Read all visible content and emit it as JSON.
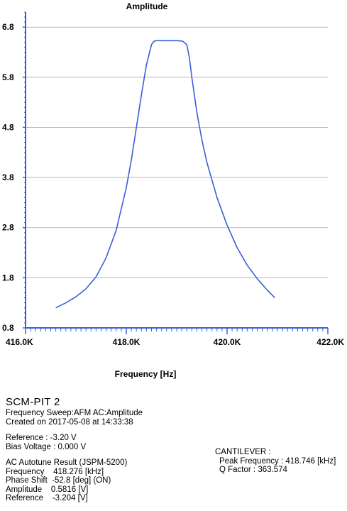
{
  "chart_data": {
    "type": "line",
    "title": "Amplitude",
    "xlabel": "Frequency [Hz]",
    "ylabel": "",
    "xlim": [
      416.0,
      422.0
    ],
    "ylim": [
      0.8,
      7.1
    ],
    "x_ticks": [
      "416.0K",
      "418.0K",
      "420.0K",
      "422.0K"
    ],
    "x_tick_values": [
      416.0,
      418.0,
      420.0,
      422.0
    ],
    "y_ticks": [
      "0.8",
      "1.8",
      "2.8",
      "3.8",
      "4.8",
      "5.8",
      "6.8"
    ],
    "y_tick_values": [
      0.8,
      1.8,
      2.8,
      3.8,
      4.8,
      5.8,
      6.8
    ],
    "grid": "horizontal",
    "line_color": "#3a5fd6",
    "series": [
      {
        "x": [
          416.6,
          416.8,
          417.0,
          417.2,
          417.4,
          417.6,
          417.8,
          418.0,
          418.1,
          418.2,
          418.3,
          418.4,
          418.5,
          418.55,
          418.6,
          418.8,
          419.0,
          419.12,
          419.2,
          419.25,
          419.3,
          419.4,
          419.5,
          419.6,
          419.8,
          420.0,
          420.2,
          420.4,
          420.6,
          420.8,
          420.95
        ],
        "y": [
          1.2,
          1.3,
          1.42,
          1.58,
          1.82,
          2.2,
          2.75,
          3.6,
          4.15,
          4.8,
          5.45,
          6.05,
          6.45,
          6.52,
          6.53,
          6.53,
          6.53,
          6.52,
          6.45,
          6.2,
          5.8,
          5.1,
          4.55,
          4.1,
          3.4,
          2.85,
          2.4,
          2.05,
          1.78,
          1.55,
          1.4
        ]
      }
    ]
  },
  "info": {
    "title": "SCM-PIT  2",
    "sweep": "Frequency Sweep:AFM AC:Amplitude",
    "created": "Created on 2017-05-08 at 14:33:38",
    "reference": "Reference : -3.20 V",
    "bias": "Bias Voltage : 0.000 V",
    "autotune": "AC Autotune Result (JSPM-5200)",
    "frequency": "Frequency    418.276 [kHz]",
    "phase": "Phase Shift  -52.8 [deg] (ON)",
    "amplitude": "Amplitude    0.5816 [V]",
    "ref_v": "Reference    -3.204 [V]"
  },
  "cantilever": {
    "heading": "CANTILEVER :",
    "peak": "Peak Frequency : 418.746 [kHz]",
    "q": "Q Factor : 363.574"
  }
}
